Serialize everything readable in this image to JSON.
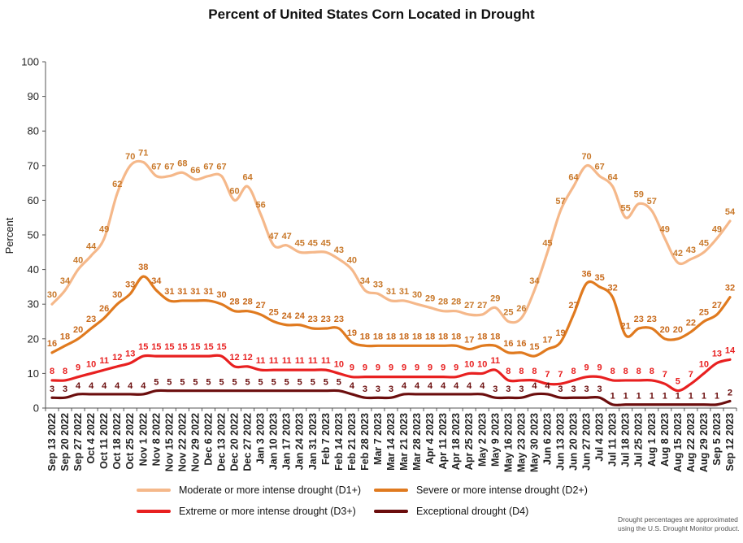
{
  "chart_data": {
    "type": "line",
    "title": "Percent of United States Corn Located in Drought",
    "ylabel": "Percent",
    "xlabel": "",
    "ylim": [
      0,
      100
    ],
    "yticks": [
      0,
      10,
      20,
      30,
      40,
      50,
      60,
      70,
      80,
      90,
      100
    ],
    "grid": false,
    "legend_position": "bottom",
    "categories": [
      "Sep 13 2022",
      "Sep 20 2022",
      "Sep 27 2022",
      "Oct 4 2022",
      "Oct 11 2022",
      "Oct 18 2022",
      "Oct 25 2022",
      "Nov 1 2022",
      "Nov 8 2022",
      "Nov 15 2022",
      "Nov 22 2022",
      "Nov 29 2022",
      "Dec 6 2022",
      "Dec 13 2022",
      "Dec 20 2022",
      "Dec 27 2022",
      "Jan 3 2023",
      "Jan 10 2023",
      "Jan 17 2023",
      "Jan 24 2023",
      "Jan 31 2023",
      "Feb 7 2023",
      "Feb 14 2023",
      "Feb 21 2023",
      "Feb 28 2023",
      "Mar 7 2023",
      "Mar 14 2023",
      "Mar 21 2023",
      "Mar 28 2023",
      "Apr 4 2023",
      "Apr 11 2023",
      "Apr 18 2023",
      "Apr 25 2023",
      "May 2 2023",
      "May 9 2023",
      "May 16 2023",
      "May 23 2023",
      "May 30 2023",
      "Jun 6 2023",
      "Jun 13 2023",
      "Jun 20 2023",
      "Jun 27 2023",
      "Jul 4 2023",
      "Jul 11 2023",
      "Jul 18 2023",
      "Jul 25 2023",
      "Aug 1 2023",
      "Aug 8 2023",
      "Aug 15 2023",
      "Aug 22 2023",
      "Aug 29 2023",
      "Sep 5 2023",
      "Sep 12 2023"
    ],
    "xtick_labels": [
      "Sep 13 2022",
      "Sep 20 2022",
      "Sep 27 2022",
      "Oct 4 2022",
      "Oct 11 2022",
      "Oct 18 2022",
      "Oct 25 2022",
      "Nov 1 2022",
      "Nov 8 2022",
      "Nov 15 2022",
      "Nov 22 2022",
      "Nov 29 2022",
      "Dec 6 2022",
      "Dec 13 2022",
      "Dec 20 2022",
      "Dec 27 2022",
      "Jan 3 2023",
      "Jan 10 2023",
      "Jan 17 2023",
      "Jan 24 2023",
      "Jan 31 2023",
      "Feb 7 2023",
      "Feb 14 2023",
      "Feb 21 2023",
      "Feb 28 2023",
      "Mar 7 2023",
      "Mar 14 2023",
      "Mar 21 2023",
      "Mar 28 2023",
      "Apr 4 2023",
      "Apr 11 2023",
      "Apr 18 2023",
      "Apr 25 2023",
      "May 2 2023",
      "May 9 2023",
      "May 16 2023",
      "May 23 2023",
      "May 30 2023",
      "Jun 6 2023",
      "Jun 13 2023",
      "Jun 20 2023",
      "Jun 27 2023",
      "Jul 4 2023",
      "Jul 11 2023",
      "Jul 18 2023",
      "Jul 25 2023",
      "Aug 1 2023",
      "Aug 8 2023",
      "Aug 15 2023",
      "Aug 22 2023",
      "Aug 29 2023",
      "Sep 5 2023",
      "Sep 12 2023"
    ],
    "series": [
      {
        "name": "Moderate or more intense drought (D1+)",
        "color": "#f5b88a",
        "label_color": "#c8782a",
        "values": [
          30,
          34,
          40,
          44,
          49,
          62,
          70,
          71,
          67,
          67,
          68,
          66,
          67,
          67,
          60,
          64,
          56,
          47,
          47,
          45,
          45,
          45,
          43,
          40,
          34,
          33,
          31,
          31,
          30,
          29,
          28,
          28,
          27,
          27,
          29,
          25,
          26,
          34,
          45,
          57,
          64,
          70,
          67,
          64,
          55,
          59,
          57,
          49,
          42,
          43,
          45,
          49,
          54
        ]
      },
      {
        "name": "Severe or more intense drought (D2+)",
        "color": "#e07a1f",
        "label_color": "#c8691a",
        "values": [
          16,
          18,
          20,
          23,
          26,
          30,
          33,
          38,
          34,
          31,
          31,
          31,
          31,
          30,
          28,
          28,
          27,
          25,
          24,
          24,
          23,
          23,
          23,
          19,
          18,
          18,
          18,
          18,
          18,
          18,
          18,
          18,
          17,
          18,
          18,
          16,
          16,
          15,
          17,
          19,
          27,
          36,
          35,
          32,
          21,
          23,
          23,
          20,
          20,
          22,
          25,
          27,
          32
        ]
      },
      {
        "name": "Extreme or more intense drought (D3+)",
        "color": "#e82020",
        "label_color": "#e82020",
        "values": [
          8,
          8,
          9,
          10,
          11,
          12,
          13,
          15,
          15,
          15,
          15,
          15,
          15,
          15,
          12,
          12,
          11,
          11,
          11,
          11,
          11,
          11,
          10,
          9,
          9,
          9,
          9,
          9,
          9,
          9,
          9,
          9,
          10,
          10,
          11,
          8,
          8,
          8,
          7,
          7,
          8,
          9,
          9,
          8,
          8,
          8,
          8,
          7,
          5,
          7,
          10,
          13,
          14
        ]
      },
      {
        "name": "Exceptional drought (D4)",
        "color": "#6b0d0d",
        "label_color": "#6b0d0d",
        "values": [
          3,
          3,
          4,
          4,
          4,
          4,
          4,
          4,
          5,
          5,
          5,
          5,
          5,
          5,
          5,
          5,
          5,
          5,
          5,
          5,
          5,
          5,
          5,
          4,
          3,
          3,
          3,
          4,
          4,
          4,
          4,
          4,
          4,
          4,
          3,
          3,
          3,
          4,
          4,
          3,
          3,
          3,
          3,
          1,
          1,
          1,
          1,
          1,
          1,
          1,
          1,
          1,
          2
        ]
      }
    ],
    "footnote": "Drought percentages are approximated using the U.S. Drought Monitor product."
  }
}
